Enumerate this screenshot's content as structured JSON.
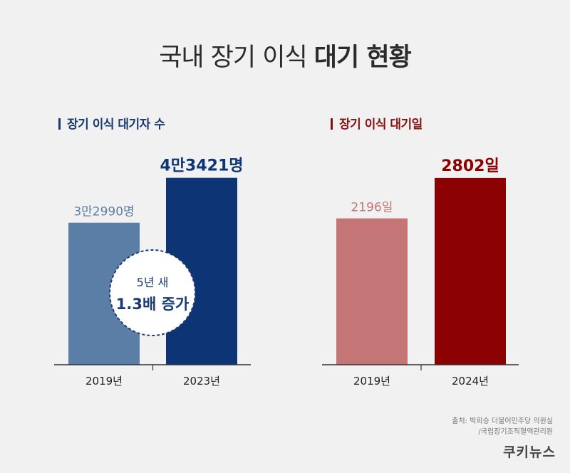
{
  "title": {
    "light": "국내 장기 이식",
    "bold": "대기 현황"
  },
  "colors": {
    "background": "#f1f1f1",
    "left_2019": "#5a7ea5",
    "left_2023": "#0d3575",
    "right_2019": "#c47575",
    "right_2024": "#8b0000",
    "badge_text": "#1a3a72"
  },
  "annotation": {
    "line1": "5년 새",
    "line2": "1.3배 증가"
  },
  "source": {
    "line1": "출처: 박희승 더불어민주당 의원실",
    "line2": "/국립장기조직혈액관리원"
  },
  "logo": "쿠키뉴스",
  "chart_data": [
    {
      "type": "bar",
      "title": "장기 이식 대기자 수",
      "categories": [
        "2019년",
        "2023년"
      ],
      "values": [
        32990,
        43421
      ],
      "data_labels": [
        "3만2990명",
        "4만3421명"
      ],
      "ylim": [
        0,
        48000
      ],
      "xlabel": "",
      "ylabel": "",
      "grid": false,
      "legend": "none"
    },
    {
      "type": "bar",
      "title": "장기 이식 대기일",
      "categories": [
        "2019년",
        "2024년"
      ],
      "values": [
        2196,
        2802
      ],
      "data_labels": [
        "2196일",
        "2802일"
      ],
      "ylim": [
        0,
        3100
      ],
      "xlabel": "",
      "ylabel": "",
      "grid": false,
      "legend": "none"
    }
  ]
}
